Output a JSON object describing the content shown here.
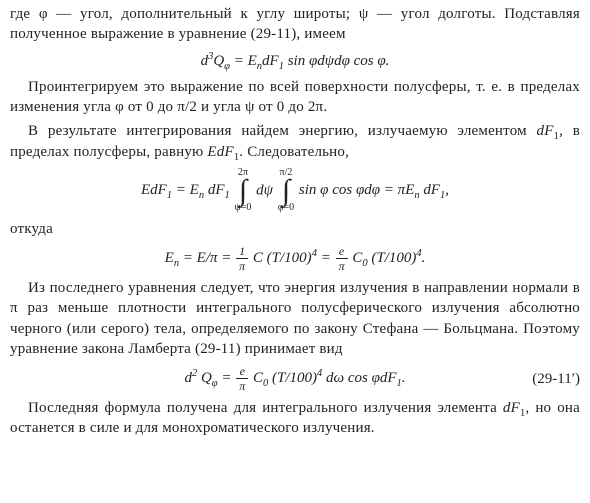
{
  "text": {
    "p1": "где φ — угол, дополнительный к углу широты; ψ — угол долготы. Подставляя полученное выражение в уравнение (29-11), имеем",
    "p2": "Проинтегрируем это выражение по всей поверхности полусферы, т. е. в пределах изменения угла φ от 0 до π/2 и угла ψ от 0 до 2π.",
    "p3_a": "В результате интегрирования найдем энергию, излучаемую элементом ",
    "p3_dF": "dF",
    "p3_sub1": "1",
    "p3_b": ", в пределах полусферы, равную ",
    "p3_EdF": "EdF",
    "p3_c": ". Следовательно,",
    "otkuda": "откуда",
    "p4": "Из последнего уравнения следует, что энергия излучения в направлении нормали в π раз меньше плотности интегрального полусферического излучения абсолютно черного (или серого) тела, определяемого по закону Стефана — Больцмана. Поэтому уравнение закона Ламберта (29-11) принимает вид",
    "p5_a": "Последняя формула получена для интегрального излучения элемента ",
    "p5_dF": "dF",
    "p5_sub1": "1",
    "p5_b": ", но она останется в силе и для монохроматического излучения."
  },
  "formulas": {
    "eq1": {
      "lhs_d3Q": "d",
      "lhs_sup3": "3",
      "lhs_Q": "Q",
      "lhs_subphi": "φ",
      "rhs": " = E",
      "rhs_subn": "n",
      "rhs_dF": "dF",
      "rhs_sub1": "1",
      "rhs_tail": " sin φdψdφ cos φ."
    },
    "eq2": {
      "pre": "EdF",
      "sub1a": "1",
      "eqEn": " = E",
      "subn": "n",
      "dF1b": " dF",
      "sub1b": "1",
      "int1_up": "2π",
      "int1_dn": "ψ=0",
      "dpsi": "dψ",
      "int2_up": "π/2",
      "int2_dn": "φ=0",
      "tail1": " sin φ cos φdφ = πE",
      "subn2": "n",
      "dF1c": " dF",
      "sub1c": "1",
      "comma": ","
    },
    "eq3": {
      "En": "E",
      "subn": "n",
      "EoverPi": " = E/π = ",
      "frac1_num": "1",
      "frac1_den": "π",
      "mid1": " C (T/100)",
      "sup4a": "4",
      "eq2": " = ",
      "frac2_num": "e",
      "frac2_den": "π",
      "mid2": " C",
      "sub0": "0",
      "mid3": " (T/100)",
      "sup4b": "4",
      "dot": "."
    },
    "eq4": {
      "d2Q": "d",
      "sup2": "2",
      "Q": " Q",
      "subphi": "φ",
      "eq": " = ",
      "frac_num": "e",
      "frac_den": "π",
      "C0": " C",
      "sub0": "0",
      "tail": " (T/100)",
      "sup4": "4",
      "tail2": " dω cos φdF",
      "sub1": "1",
      "dot": ".",
      "eqnum": "(29-11′)"
    }
  },
  "style": {
    "text_color": "#222222",
    "background": "#ffffff",
    "body_fontsize": 15,
    "formula_fontsize": 15,
    "small_limit_fontsize": 10,
    "integral_symbol_fontsize": 30,
    "font_family": "Times New Roman"
  }
}
